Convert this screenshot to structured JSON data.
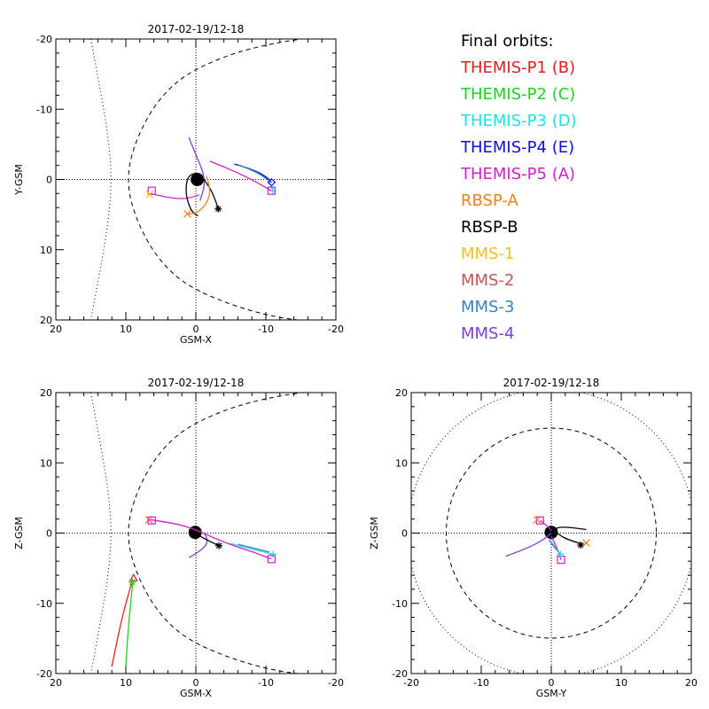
{
  "legend": {
    "title": "Final orbits:",
    "entries": [
      {
        "label": "THEMIS-P1 (B)",
        "color": "#e02020"
      },
      {
        "label": "THEMIS-P2 (C)",
        "color": "#20d020"
      },
      {
        "label": "THEMIS-P3 (D)",
        "color": "#20e0e8"
      },
      {
        "label": "THEMIS-P4 (E)",
        "color": "#1010d8"
      },
      {
        "label": "THEMIS-P5 (A)",
        "color": "#d020d0"
      },
      {
        "label": "RBSP-A",
        "color": "#f08020"
      },
      {
        "label": "RBSP-B",
        "color": "#000000"
      },
      {
        "label": "MMS-1",
        "color": "#f0c020"
      },
      {
        "label": "MMS-2",
        "color": "#c05858"
      },
      {
        "label": "MMS-3",
        "color": "#3880c0"
      },
      {
        "label": "MMS-4",
        "color": "#8040d0"
      }
    ]
  },
  "chart_data": [
    {
      "type": "line",
      "id": "xy",
      "title": "2017-02-19/12-18",
      "xlabel": "GSM-X",
      "ylabel": "Y-GSM",
      "xlim": [
        20,
        -20
      ],
      "ylim": [
        20,
        -20
      ],
      "xticks": [
        20,
        10,
        0,
        -10,
        -20
      ],
      "yticks": [
        -20,
        -10,
        0,
        10,
        20
      ],
      "xtick_labels": [
        "20",
        "10",
        "0",
        "-10",
        "-20"
      ],
      "ytick_labels": [
        "-20",
        "-10",
        "0",
        "10",
        "20"
      ],
      "boundaries": [
        {
          "name": "bow-shock",
          "style": "dotted",
          "points": [
            [
              15,
              -20
            ],
            [
              13.5,
              -12
            ],
            [
              12.5,
              -6
            ],
            [
              12,
              0
            ],
            [
              12.5,
              6
            ],
            [
              13.5,
              12
            ],
            [
              15,
              20
            ]
          ]
        },
        {
          "name": "magnetopause",
          "style": "dashed",
          "points": [
            [
              -19,
              -20.5
            ],
            [
              -10,
              -19.5
            ],
            [
              0,
              -16
            ],
            [
              5,
              -12
            ],
            [
              8.5,
              -6
            ],
            [
              10,
              0
            ],
            [
              8.5,
              6
            ],
            [
              5,
              12
            ],
            [
              0,
              16
            ],
            [
              -10,
              19.5
            ],
            [
              -19,
              20.5
            ]
          ]
        }
      ],
      "series": [
        {
          "name": "THEMIS-P3 (D)",
          "color": "#20e0e8",
          "points": [
            [
              -5.5,
              -2.2
            ],
            [
              -8,
              -1.5
            ],
            [
              -10.2,
              -0.4
            ],
            [
              -11,
              1.6
            ]
          ],
          "marker": {
            "shape": "plus",
            "at": [
              -11,
              1.6
            ]
          }
        },
        {
          "name": "THEMIS-P4 (E)",
          "color": "#1010d8",
          "points": [
            [
              -5.5,
              -2.2
            ],
            [
              -8,
              -1.5
            ],
            [
              -10.2,
              -0.3
            ],
            [
              -10.8,
              0.4
            ]
          ],
          "marker": {
            "shape": "diamond",
            "at": [
              -10.8,
              0.4
            ]
          }
        },
        {
          "name": "MMS-3",
          "color": "#3880c0",
          "points": [
            [
              -6,
              -2.1
            ],
            [
              -8.5,
              -1.2
            ],
            [
              -10.5,
              0.2
            ]
          ],
          "marker": null
        },
        {
          "name": "THEMIS-P5 (A)",
          "color": "#d020d0",
          "points": [
            [
              6.5,
              2
            ],
            [
              4,
              2.6
            ],
            [
              1.5,
              2.8
            ],
            [
              -0.5,
              2.2
            ]
          ],
          "marker": {
            "shape": "square",
            "at": [
              6.3,
              1.6
            ]
          }
        },
        {
          "name": "THEMIS-P5 (A)",
          "color": "#d020d0",
          "points": [
            [
              -2,
              -2.6
            ],
            [
              -5.5,
              -1.2
            ],
            [
              -8.5,
              0.3
            ],
            [
              -10.8,
              1.6
            ]
          ],
          "marker": {
            "shape": "square",
            "at": [
              -10.8,
              1.6
            ]
          }
        },
        {
          "name": "MMS-4",
          "color": "#8040d0",
          "points": [
            [
              1,
              -6
            ],
            [
              0,
              -3.5
            ],
            [
              -1,
              -1.2
            ],
            [
              -1.3,
              0.8
            ],
            [
              -0.6,
              3
            ]
          ],
          "marker": null
        },
        {
          "name": "RBSP-B",
          "color": "#000000",
          "points": [
            [
              -3.2,
              4.2
            ],
            [
              -2.5,
              2
            ],
            [
              -1.2,
              0
            ],
            [
              -0.2,
              -1
            ],
            [
              1.2,
              -0.5
            ],
            [
              1.5,
              2
            ],
            [
              0.7,
              4.5
            ],
            [
              -0.3,
              5.2
            ]
          ],
          "marker": {
            "shape": "asterisk",
            "at": [
              -3.2,
              4.2
            ]
          }
        },
        {
          "name": "RBSP-A",
          "color": "#f08020",
          "points": [
            [
              -1.5,
              -0.5
            ],
            [
              -2.2,
              1.5
            ],
            [
              -1.5,
              3.5
            ],
            [
              -0.2,
              4.8
            ],
            [
              1.2,
              4.9
            ]
          ],
          "marker": {
            "shape": "cross",
            "at": [
              1.2,
              4.9
            ]
          }
        },
        {
          "name": "MMS-1",
          "color": "#f0c020",
          "points": [
            [
              6.8,
              2.3
            ],
            [
              6.5,
              2
            ]
          ],
          "marker": {
            "shape": "cross",
            "at": [
              6.6,
              2.1
            ]
          }
        }
      ]
    },
    {
      "type": "line",
      "id": "xz",
      "title": "2017-02-19/12-18",
      "xlabel": "GSM-X",
      "ylabel": "Z-GSM",
      "xlim": [
        20,
        -20
      ],
      "ylim": [
        -20,
        20
      ],
      "xticks": [
        20,
        10,
        0,
        -10,
        -20
      ],
      "yticks": [
        20,
        10,
        0,
        -10,
        -20
      ],
      "xtick_labels": [
        "20",
        "10",
        "0",
        "-10",
        "-20"
      ],
      "ytick_labels": [
        "20",
        "10",
        "0",
        "-10",
        "-20"
      ],
      "boundaries": [
        {
          "name": "bow-shock",
          "style": "dotted",
          "points": [
            [
              15,
              20
            ],
            [
              13.5,
              12
            ],
            [
              12.5,
              6
            ],
            [
              12,
              0
            ],
            [
              12.5,
              -6
            ],
            [
              13.5,
              -12
            ],
            [
              15,
              -20
            ]
          ]
        },
        {
          "name": "magnetopause",
          "style": "dashed",
          "points": [
            [
              -19,
              20.5
            ],
            [
              -10,
              19.5
            ],
            [
              0,
              16
            ],
            [
              5,
              12
            ],
            [
              8.5,
              6
            ],
            [
              10,
              0
            ],
            [
              8.5,
              -6
            ],
            [
              5,
              -12
            ],
            [
              0,
              -16
            ],
            [
              -10,
              -19.5
            ],
            [
              -19,
              -20.5
            ]
          ]
        }
      ],
      "series": [
        {
          "name": "THEMIS-P1 (B)",
          "color": "#e02020",
          "points": [
            [
              12,
              -19
            ],
            [
              11,
              -14
            ],
            [
              10,
              -10
            ],
            [
              9,
              -6.5
            ]
          ],
          "marker": {
            "shape": "triangle",
            "at": [
              8.9,
              -6.4
            ]
          }
        },
        {
          "name": "THEMIS-P2 (C)",
          "color": "#20d020",
          "points": [
            [
              10,
              -19
            ],
            [
              9.7,
              -14
            ],
            [
              9.3,
              -10
            ],
            [
              9,
              -6.8
            ]
          ],
          "marker": {
            "shape": "asterisk",
            "at": [
              9.1,
              -7
            ]
          }
        },
        {
          "name": "THEMIS-P3 (D)",
          "color": "#20e0e8",
          "points": [
            [
              -5,
              -1.5
            ],
            [
              -8,
              -2.3
            ],
            [
              -11,
              -3
            ]
          ],
          "marker": {
            "shape": "plus",
            "at": [
              -11,
              -3
            ]
          }
        },
        {
          "name": "MMS-3",
          "color": "#3880c0",
          "points": [
            [
              -6,
              -1.6
            ],
            [
              -8.5,
              -2.2
            ],
            [
              -10.5,
              -2.7
            ]
          ],
          "marker": null
        },
        {
          "name": "THEMIS-P5 (A)",
          "color": "#d020d0",
          "points": [
            [
              6.5,
              1.9
            ],
            [
              3,
              1.4
            ],
            [
              0,
              0.5
            ],
            [
              -3,
              -0.9
            ],
            [
              -6,
              -2
            ],
            [
              -8.5,
              -2.8
            ],
            [
              -10.8,
              -3.7
            ]
          ],
          "marker": {
            "shape": "square",
            "at": [
              -10.8,
              -3.7
            ]
          }
        },
        {
          "name": "MMS-4",
          "color": "#8040d0",
          "points": [
            [
              1,
              -3.5
            ],
            [
              -0.8,
              -2.5
            ],
            [
              -1.8,
              -1.2
            ],
            [
              -1.2,
              0
            ]
          ],
          "marker": null
        },
        {
          "name": "RBSP-B",
          "color": "#000000",
          "points": [
            [
              -3.3,
              -1.8
            ],
            [
              -2,
              -1.2
            ],
            [
              -0.5,
              -0.4
            ],
            [
              0.6,
              0.3
            ]
          ],
          "marker": {
            "shape": "asterisk",
            "at": [
              -3.3,
              -1.8
            ]
          }
        },
        {
          "name": "RBSP-A",
          "color": "#f08020",
          "points": [
            [
              6.8,
              1.9
            ],
            [
              6.5,
              1.7
            ]
          ],
          "marker": {
            "shape": "cross",
            "at": [
              6.7,
              1.9
            ]
          }
        },
        {
          "name": "THEMIS-P5 (A)",
          "color": "#d020d0",
          "points": [
            [
              6.3,
              1.8
            ]
          ],
          "marker": {
            "shape": "square",
            "at": [
              6.3,
              1.8
            ]
          }
        }
      ]
    },
    {
      "type": "line",
      "id": "yz",
      "title": "2017-02-19/12-18",
      "xlabel": "GSM-Y",
      "ylabel": "Z-GSM",
      "xlim": [
        -20,
        20
      ],
      "ylim": [
        -20,
        20
      ],
      "xticks": [
        -20,
        -10,
        0,
        10,
        20
      ],
      "yticks": [
        20,
        10,
        0,
        -10,
        -20
      ],
      "xtick_labels": [
        "-20",
        "-10",
        "0",
        "10",
        "20"
      ],
      "ytick_labels": [
        "20",
        "10",
        "0",
        "-10",
        "-20"
      ],
      "boundaries": [
        {
          "name": "bow-shock",
          "style": "dotted",
          "circle_radius": 20.5
        },
        {
          "name": "magnetopause",
          "style": "dashed",
          "circle_radius": 15
        }
      ],
      "series": [
        {
          "name": "RBSP-B",
          "color": "#000000",
          "points": [
            [
              4.5,
              -1.6
            ],
            [
              2.5,
              -1
            ],
            [
              1,
              -0.2
            ],
            [
              0.4,
              0.6
            ],
            [
              1.5,
              0.9
            ],
            [
              3.5,
              0.7
            ],
            [
              5,
              0.5
            ]
          ],
          "marker": {
            "shape": "asterisk",
            "at": [
              4.2,
              -1.7
            ]
          }
        },
        {
          "name": "RBSP-A",
          "color": "#f08020",
          "points": [
            [
              5,
              -1.5
            ],
            [
              4.5,
              -1.6
            ]
          ],
          "marker": {
            "shape": "cross",
            "at": [
              5,
              -1.4
            ]
          }
        },
        {
          "name": "THEMIS-P5 (A)",
          "color": "#d020d0",
          "points": [
            [
              -1.6,
              1.8
            ],
            [
              -0.5,
              1
            ],
            [
              0,
              0.3
            ]
          ],
          "marker": {
            "shape": "square",
            "at": [
              -1.6,
              1.8
            ]
          }
        },
        {
          "name": "MMS-4",
          "color": "#8040d0",
          "points": [
            [
              -6.5,
              -3.3
            ],
            [
              -3.5,
              -2.2
            ],
            [
              -1.2,
              -1
            ],
            [
              0,
              0
            ]
          ],
          "marker": null
        },
        {
          "name": "THEMIS-P5 (A)",
          "color": "#d020d0",
          "points": [
            [
              0,
              -0.5
            ],
            [
              0.8,
              -2
            ],
            [
              1.4,
              -3.8
            ]
          ],
          "marker": {
            "shape": "square",
            "at": [
              1.4,
              -3.8
            ]
          }
        },
        {
          "name": "THEMIS-P3 (D)",
          "color": "#20e0e8",
          "points": [
            [
              -0.2,
              -1
            ],
            [
              0.7,
              -2.2
            ],
            [
              1.3,
              -3
            ]
          ],
          "marker": {
            "shape": "plus",
            "at": [
              1.3,
              -3
            ]
          }
        },
        {
          "name": "MMS-3",
          "color": "#3880c0",
          "points": [
            [
              -0.3,
              -1
            ],
            [
              0.4,
              -2
            ],
            [
              1,
              -2.6
            ]
          ],
          "marker": null
        },
        {
          "name": "RBSP-A",
          "color": "#f08020",
          "points": [
            [
              -2,
              1.9
            ]
          ],
          "marker": {
            "shape": "cross",
            "at": [
              -2,
              1.9
            ]
          }
        }
      ]
    }
  ]
}
